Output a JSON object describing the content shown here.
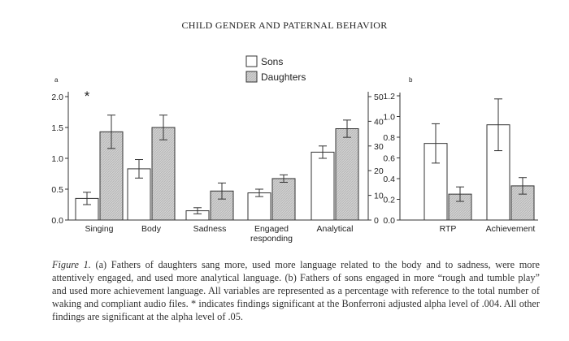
{
  "running_head": "CHILD GENDER AND PATERNAL BEHAVIOR",
  "caption": {
    "label": "Figure 1.",
    "text": "  (a) Fathers of daughters sang more, used more language related to the body and to sadness, were more attentively engaged, and used more analytical language. (b) Fathers of sons engaged in more “rough and tumble play” and used more achievement language. All variables are represented as a percentage with reference to the total number of waking and compliant audio files. * indicates findings significant at the Bonferroni adjusted alpha level of .004. All other findings are significant at the alpha level of .05."
  },
  "colors": {
    "sons_fill": "#ffffff",
    "daughters_fill": "#c8c8c8",
    "stroke": "#333333"
  },
  "chart_data": [
    {
      "panel": "a",
      "type": "bar",
      "legend": [
        "Sons",
        "Daughters"
      ],
      "left_axis": {
        "ylim": [
          0,
          2.0
        ],
        "ticks": [
          "0.0",
          "0.5",
          "1.0",
          "1.5",
          "2.0"
        ]
      },
      "right_axis": {
        "ylim": [
          0,
          50
        ],
        "ticks": [
          "0",
          "10",
          "20",
          "30",
          "40",
          "50"
        ]
      },
      "categories": [
        "Singing",
        "Body",
        "Sadness",
        "Engaged responding",
        "Analytical"
      ],
      "category_labels": [
        [
          "Singing"
        ],
        [
          "Body"
        ],
        [
          "Sadness"
        ],
        [
          "Engaged",
          "responding"
        ],
        [
          "Analytical"
        ]
      ],
      "category_axis": [
        "left",
        "left",
        "left",
        "right",
        "right"
      ],
      "annotation": {
        "category": "Singing",
        "text": "*"
      },
      "series": [
        {
          "name": "Sons",
          "values": [
            0.35,
            0.83,
            0.15,
            11,
            27.5
          ],
          "err": [
            0.1,
            0.15,
            0.05,
            1.5,
            2.5
          ]
        },
        {
          "name": "Daughters",
          "values": [
            1.43,
            1.5,
            0.47,
            16.8,
            37
          ],
          "err": [
            0.27,
            0.2,
            0.13,
            1.5,
            3.5
          ]
        }
      ]
    },
    {
      "panel": "b",
      "type": "bar",
      "axis": {
        "ylim": [
          0,
          1.2
        ],
        "ticks": [
          "0.0",
          "0.2",
          "0.4",
          "0.6",
          "0.8",
          "1.0",
          "1.2"
        ]
      },
      "categories": [
        "RTP",
        "Achievement"
      ],
      "series": [
        {
          "name": "Sons",
          "values": [
            0.74,
            0.92
          ],
          "err": [
            0.19,
            0.25
          ]
        },
        {
          "name": "Daughters",
          "values": [
            0.25,
            0.33
          ],
          "err": [
            0.07,
            0.08
          ]
        }
      ]
    }
  ]
}
